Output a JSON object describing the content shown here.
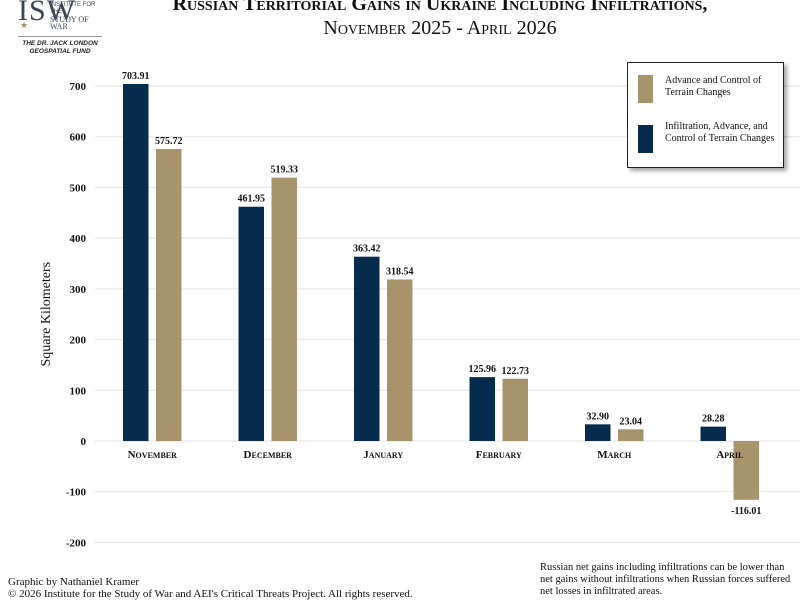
{
  "logo": {
    "mark": "ISW",
    "sub_line1": "INSTITUTE FOR THE",
    "sub_line2": "STUDY OF WAR",
    "fund_line1": "THE DR. JACK LONDON",
    "fund_line2": "GEOSPATIAL FUND"
  },
  "title": {
    "line1": "Russian Territorial Gains in Ukraine Including Infiltrations,",
    "line2": "November 2025 - April 2026"
  },
  "colors": {
    "infiltration": "#062b4c",
    "advance": "#a8946c",
    "grid": "#e2e2e2"
  },
  "chart_data": {
    "type": "bar",
    "categories": [
      "November",
      "December",
      "January",
      "February",
      "March",
      "April"
    ],
    "series": [
      {
        "name": "Infiltration, Advance, and Control of Terrain Changes",
        "color": "#062b4c",
        "values": [
          703.91,
          461.95,
          363.42,
          125.96,
          32.9,
          28.28
        ],
        "labels": [
          "703.91",
          "461.95",
          "363.42",
          "125.96",
          "32.90",
          "28.28"
        ]
      },
      {
        "name": "Advance and Control of Terrain Changes",
        "color": "#a8946c",
        "values": [
          575.72,
          519.33,
          318.54,
          122.73,
          23.04,
          -116.01
        ],
        "labels": [
          "575.72",
          "519.33",
          "318.54",
          "122.73",
          "23.04",
          "-116.01"
        ]
      }
    ],
    "ylabel": "Square Kilometers",
    "ylim": [
      -200,
      700
    ],
    "yticks": [
      700,
      600,
      500,
      400,
      300,
      200,
      100,
      0,
      -100,
      -200
    ],
    "grid": true,
    "legend_position": "top-right"
  },
  "legend": {
    "item1": "Advance and Control of Terrain Changes",
    "item2": "Infiltration, Advance, and Control of Terrain Changes"
  },
  "credit": {
    "line1": "Graphic by Nathaniel Kramer",
    "line2": "© 2026 Institute for the Study of War and AEI's Critical Threats Project. All rights reserved."
  },
  "note": "Russian net gains including infiltrations can be lower than net gains without infiltrations when Russian forces suffered net losses in infiltrated areas."
}
